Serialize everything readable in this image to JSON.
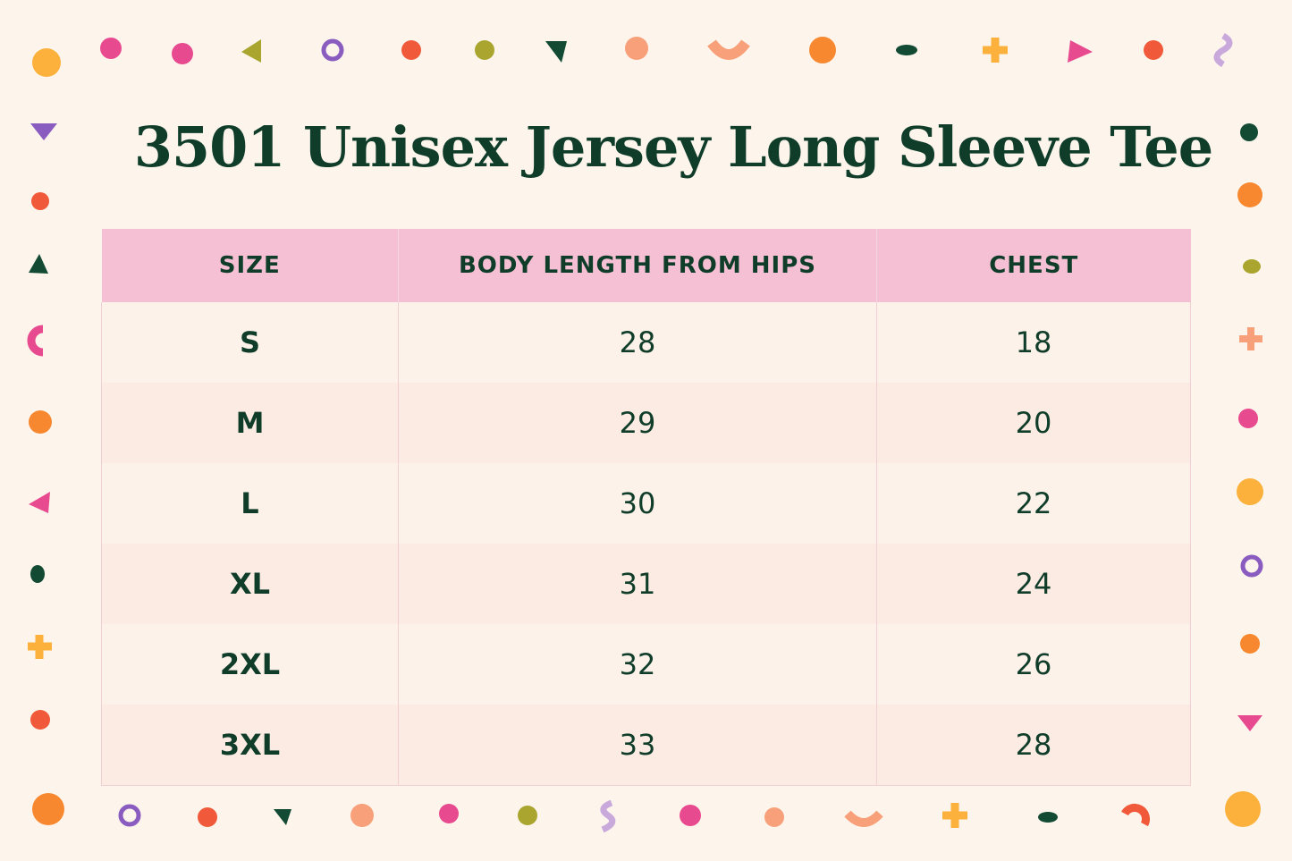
{
  "title": "3501 Unisex Jersey Long Sleeve Tee",
  "table": {
    "headers": [
      "SIZE",
      "BODY LENGTH FROM HIPS",
      "CHEST"
    ],
    "rows": [
      [
        "S",
        28,
        18
      ],
      [
        "M",
        29,
        20
      ],
      [
        "L",
        30,
        22
      ],
      [
        "XL",
        31,
        24
      ],
      [
        "2XL",
        32,
        26
      ],
      [
        "3XL",
        33,
        28
      ]
    ]
  }
}
